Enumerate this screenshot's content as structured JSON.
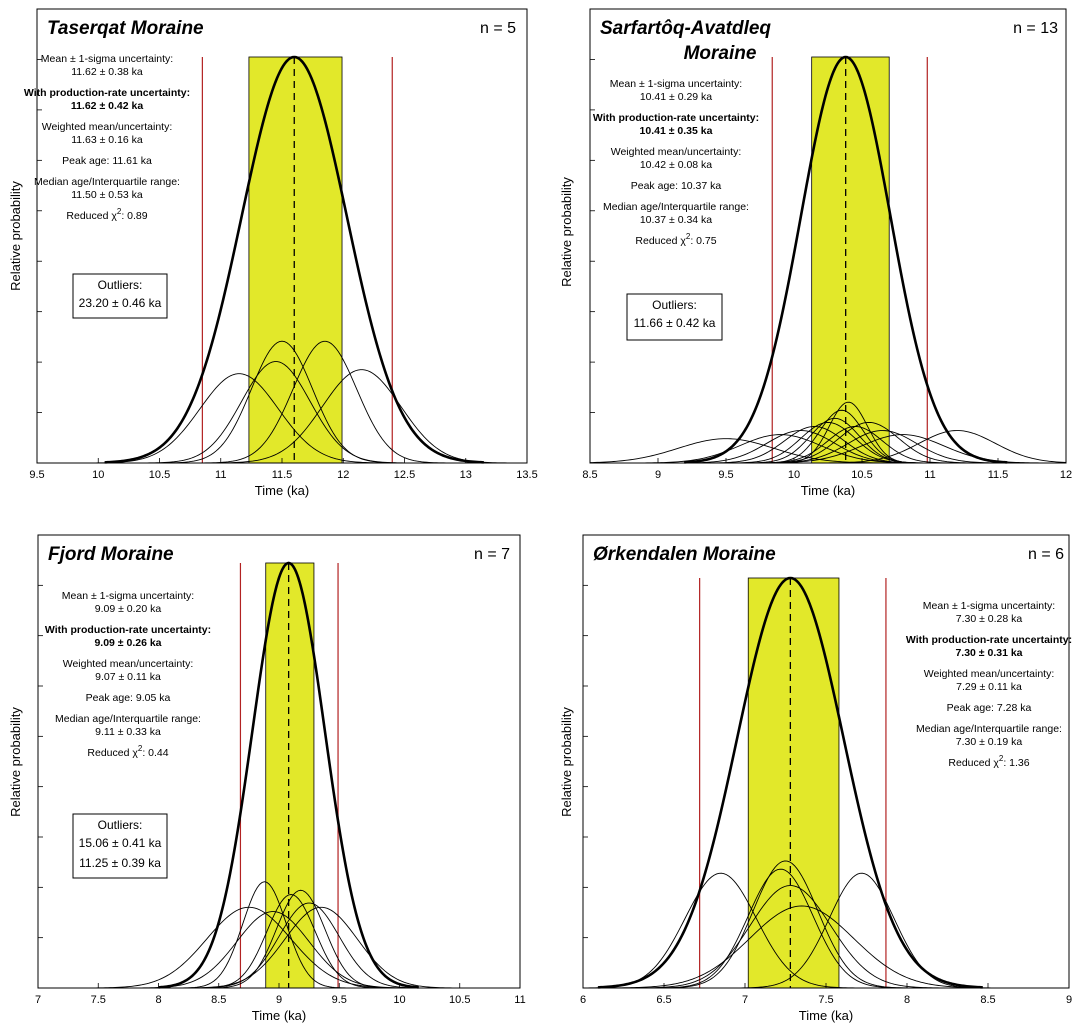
{
  "chart_data": [
    {
      "type": "line",
      "title": "Taserqat Moraine",
      "n_label": "n = 5",
      "xlabel": "Time (ka)",
      "ylabel": "Relative probability",
      "xlim": [
        9.5,
        13.5
      ],
      "xticks": [
        "9.5",
        "10",
        "10.5",
        "11",
        "11.5",
        "12",
        "12.5",
        "13",
        "13.5"
      ],
      "summary_curve": {
        "mean": 11.6,
        "sigma": 0.43
      },
      "individual_samples": [
        {
          "mean": 11.15,
          "sigma": 0.32,
          "rel_height": 0.22
        },
        {
          "mean": 11.45,
          "sigma": 0.28,
          "rel_height": 0.25
        },
        {
          "mean": 11.5,
          "sigma": 0.25,
          "rel_height": 0.3
        },
        {
          "mean": 11.85,
          "sigma": 0.26,
          "rel_height": 0.3
        },
        {
          "mean": 12.15,
          "sigma": 0.32,
          "rel_height": 0.23
        }
      ],
      "shaded_band": [
        11.23,
        11.99
      ],
      "red_lines": [
        10.85,
        12.4
      ],
      "dashed_line": 11.6,
      "stats": [
        {
          "label": "Mean ± 1-sigma uncertainty:",
          "value": "11.62 ± 0.38 ka"
        },
        {
          "label": "With production-rate uncertainty:",
          "value": "11.62 ± 0.42 ka",
          "bold": true
        },
        {
          "label": "Weighted mean/uncertainty:",
          "value": "11.63 ± 0.16 ka"
        },
        {
          "label": "Peak age: 11.61 ka"
        },
        {
          "label": "Median age/Interquartile range:",
          "value": "11.50 ± 0.53 ka"
        },
        {
          "label": "Reduced χ",
          "sup": "2",
          "value": ": 0.89",
          "inline": true
        }
      ],
      "outliers_title": "Outliers:",
      "outliers": [
        "23.20 ± 0.46 ka"
      ]
    },
    {
      "type": "line",
      "title": "Sarfartôq-Avatdleq",
      "title2": "Moraine",
      "n_label": "n = 13",
      "xlabel": "Time (ka)",
      "ylabel": "Relative probability",
      "xlim": [
        8.5,
        12
      ],
      "xticks": [
        "8.5",
        "9",
        "9.5",
        "10",
        "10.5",
        "11",
        "11.5",
        "12"
      ],
      "summary_curve": {
        "mean": 10.38,
        "sigma": 0.33
      },
      "individual_samples": [
        {
          "mean": 9.5,
          "sigma": 0.35,
          "rel_height": 0.06
        },
        {
          "mean": 9.9,
          "sigma": 0.3,
          "rel_height": 0.07
        },
        {
          "mean": 10.05,
          "sigma": 0.25,
          "rel_height": 0.08
        },
        {
          "mean": 10.15,
          "sigma": 0.22,
          "rel_height": 0.09
        },
        {
          "mean": 10.25,
          "sigma": 0.2,
          "rel_height": 0.1
        },
        {
          "mean": 10.3,
          "sigma": 0.18,
          "rel_height": 0.11
        },
        {
          "mean": 10.35,
          "sigma": 0.16,
          "rel_height": 0.13
        },
        {
          "mean": 10.4,
          "sigma": 0.14,
          "rel_height": 0.15
        },
        {
          "mean": 10.45,
          "sigma": 0.2,
          "rel_height": 0.09
        },
        {
          "mean": 10.55,
          "sigma": 0.22,
          "rel_height": 0.1
        },
        {
          "mean": 10.65,
          "sigma": 0.25,
          "rel_height": 0.08
        },
        {
          "mean": 10.8,
          "sigma": 0.3,
          "rel_height": 0.07
        },
        {
          "mean": 11.2,
          "sigma": 0.28,
          "rel_height": 0.08
        }
      ],
      "shaded_band": [
        10.13,
        10.7
      ],
      "red_lines": [
        9.84,
        10.98
      ],
      "dashed_line": 10.38,
      "stats": [
        {
          "label": "Mean ± 1-sigma uncertainty:",
          "value": "10.41 ± 0.29 ka"
        },
        {
          "label": "With production-rate uncertainty:",
          "value": "10.41 ± 0.35 ka",
          "bold": true
        },
        {
          "label": "Weighted mean/uncertainty:",
          "value": "10.42 ± 0.08 ka"
        },
        {
          "label": "Peak age: 10.37 ka"
        },
        {
          "label": "Median age/Interquartile range:",
          "value": "10.37 ± 0.34 ka"
        },
        {
          "label": "Reduced χ",
          "sup": "2",
          "value": ": 0.75",
          "inline": true
        }
      ],
      "outliers_title": "Outliers:",
      "outliers": [
        "11.66 ± 0.42 ka"
      ]
    },
    {
      "type": "line",
      "title": "Fjord Moraine",
      "n_label": "n = 7",
      "xlabel": "Time (ka)",
      "ylabel": "Relative probability",
      "xlim": [
        7,
        11
      ],
      "xticks": [
        "7",
        "7.5",
        "8",
        "8.5",
        "9",
        "9.5",
        "10",
        "10.5",
        "11"
      ],
      "summary_curve": {
        "mean": 9.08,
        "sigma": 0.3
      },
      "individual_samples": [
        {
          "mean": 8.75,
          "sigma": 0.35,
          "rel_height": 0.19
        },
        {
          "mean": 8.88,
          "sigma": 0.18,
          "rel_height": 0.25
        },
        {
          "mean": 8.95,
          "sigma": 0.3,
          "rel_height": 0.18
        },
        {
          "mean": 9.1,
          "sigma": 0.2,
          "rel_height": 0.22
        },
        {
          "mean": 9.18,
          "sigma": 0.2,
          "rel_height": 0.23
        },
        {
          "mean": 9.25,
          "sigma": 0.25,
          "rel_height": 0.2
        },
        {
          "mean": 9.35,
          "sigma": 0.3,
          "rel_height": 0.19
        }
      ],
      "shaded_band": [
        8.89,
        9.29
      ],
      "red_lines": [
        8.68,
        9.49
      ],
      "dashed_line": 9.08,
      "stats": [
        {
          "label": "Mean ± 1-sigma uncertainty:",
          "value": "9.09 ± 0.20 ka"
        },
        {
          "label": "With production-rate uncertainty:",
          "value": "9.09 ± 0.26 ka",
          "bold": true
        },
        {
          "label": "Weighted mean/uncertainty:",
          "value": "9.07 ± 0.11 ka"
        },
        {
          "label": "Peak age: 9.05 ka"
        },
        {
          "label": "Median age/Interquartile range:",
          "value": "9.11 ± 0.33 ka"
        },
        {
          "label": "Reduced χ",
          "sup": "2",
          "value": ": 0.44",
          "inline": true
        }
      ],
      "outliers_title": "Outliers:",
      "outliers": [
        "15.06 ± 0.41 ka",
        "11.25 ± 0.39 ka"
      ]
    },
    {
      "type": "line",
      "title": "Ørkendalen Moraine",
      "n_label": "n = 6",
      "xlabel": "Time (ka)",
      "ylabel": "Relative probability",
      "xlim": [
        6,
        9
      ],
      "xticks": [
        "6",
        "6.5",
        "7",
        "7.5",
        "8",
        "8.5",
        "9"
      ],
      "summary_curve": {
        "mean": 7.28,
        "sigma": 0.33
      },
      "individual_samples": [
        {
          "mean": 6.85,
          "sigma": 0.22,
          "rel_height": 0.28
        },
        {
          "mean": 7.22,
          "sigma": 0.2,
          "rel_height": 0.29
        },
        {
          "mean": 7.25,
          "sigma": 0.2,
          "rel_height": 0.31
        },
        {
          "mean": 7.28,
          "sigma": 0.25,
          "rel_height": 0.25
        },
        {
          "mean": 7.35,
          "sigma": 0.32,
          "rel_height": 0.2
        },
        {
          "mean": 7.72,
          "sigma": 0.2,
          "rel_height": 0.28
        }
      ],
      "shaded_band": [
        7.02,
        7.58
      ],
      "red_lines": [
        6.72,
        7.87
      ],
      "dashed_line": 7.28,
      "stats": [
        {
          "label": "Mean ± 1-sigma uncertainty:",
          "value": "7.30 ± 0.28 ka"
        },
        {
          "label": "With production-rate uncertainty:",
          "value": "7.30 ± 0.31 ka",
          "bold": true
        },
        {
          "label": "Weighted mean/uncertainty:",
          "value": "7.29 ± 0.11 ka"
        },
        {
          "label": "Peak age: 7.28 ka"
        },
        {
          "label": "Median age/Interquartile range:",
          "value": "7.30 ± 0.19 ka"
        },
        {
          "label": "Reduced χ",
          "sup": "2",
          "value": ": 1.36",
          "inline": true
        }
      ]
    }
  ],
  "colors": {
    "band": "#e2e82a",
    "red_line": "#b22222",
    "curve": "#000000"
  }
}
